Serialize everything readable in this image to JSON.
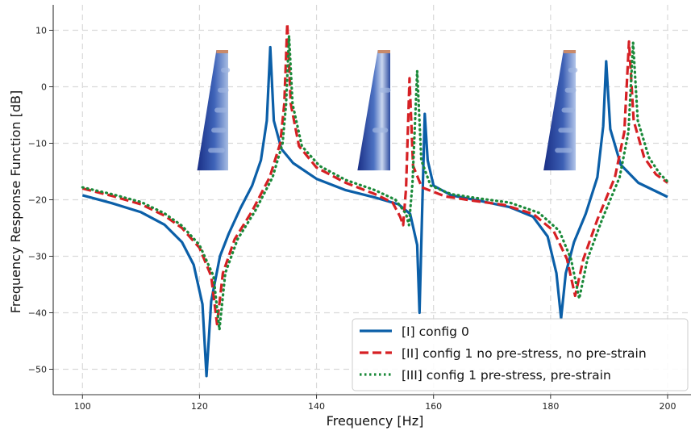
{
  "chart_data": {
    "type": "line",
    "title": "",
    "xlabel": "Frequency [Hz]",
    "ylabel": "Frequency Response Function [dB]",
    "xlim": [
      95,
      204
    ],
    "ylim": [
      -54.5,
      14.5
    ],
    "xticks": [
      100,
      120,
      140,
      160,
      180,
      200
    ],
    "yticks": [
      10,
      0,
      -10,
      -20,
      -30,
      -40,
      -50
    ],
    "grid": true,
    "legend_position": "bottom-right",
    "series": [
      {
        "name": "[I] config 0",
        "color": "#0b5fa8",
        "style": "solid",
        "antiresonances": [
          121.2,
          157.6,
          181.8
        ],
        "resonances": [
          132.1,
          158.5,
          189.5
        ],
        "points": [
          [
            100,
            -19.2
          ],
          [
            105,
            -20.6
          ],
          [
            110,
            -22.2
          ],
          [
            114,
            -24.4
          ],
          [
            117,
            -27.5
          ],
          [
            119,
            -31.5
          ],
          [
            120.5,
            -38.5
          ],
          [
            121.2,
            -51.2
          ],
          [
            122,
            -38.0
          ],
          [
            123.5,
            -30.0
          ],
          [
            125,
            -26.0
          ],
          [
            127,
            -21.5
          ],
          [
            129,
            -17.5
          ],
          [
            130.5,
            -13.0
          ],
          [
            131.5,
            -6.0
          ],
          [
            132.1,
            7.0
          ],
          [
            132.7,
            -6.0
          ],
          [
            134,
            -11.0
          ],
          [
            136,
            -13.5
          ],
          [
            140,
            -16.3
          ],
          [
            145,
            -18.3
          ],
          [
            150,
            -19.6
          ],
          [
            154,
            -20.8
          ],
          [
            156,
            -22.5
          ],
          [
            157.2,
            -28.0
          ],
          [
            157.6,
            -40.0
          ],
          [
            158.0,
            -24.0
          ],
          [
            158.5,
            -4.8
          ],
          [
            159.0,
            -13.0
          ],
          [
            160,
            -17.5
          ],
          [
            163,
            -19.2
          ],
          [
            168,
            -20.2
          ],
          [
            173,
            -21.3
          ],
          [
            177,
            -23.0
          ],
          [
            179.5,
            -26.5
          ],
          [
            181,
            -33.0
          ],
          [
            181.8,
            -41.0
          ],
          [
            182.6,
            -33.0
          ],
          [
            184,
            -27.5
          ],
          [
            186,
            -22.5
          ],
          [
            188,
            -16.0
          ],
          [
            189,
            -7.0
          ],
          [
            189.5,
            4.5
          ],
          [
            190.2,
            -7.5
          ],
          [
            192,
            -13.8
          ],
          [
            195,
            -17.0
          ],
          [
            200,
            -19.5
          ]
        ]
      },
      {
        "name": "[II] config 1 no pre-stress, no pre-strain",
        "color": "#d62024",
        "style": "dashed",
        "antiresonances": [
          123.0,
          154.8,
          184.2
        ],
        "resonances": [
          135.0,
          155.9,
          193.4
        ],
        "points": [
          [
            100,
            -18.0
          ],
          [
            105,
            -19.3
          ],
          [
            110,
            -20.8
          ],
          [
            114,
            -22.8
          ],
          [
            117,
            -25.0
          ],
          [
            120,
            -28.5
          ],
          [
            122,
            -33.5
          ],
          [
            123.0,
            -42.0
          ],
          [
            124,
            -33.0
          ],
          [
            126,
            -27.0
          ],
          [
            129,
            -22.0
          ],
          [
            132,
            -16.0
          ],
          [
            133.8,
            -10.0
          ],
          [
            134.5,
            -3.0
          ],
          [
            135.0,
            11.2
          ],
          [
            135.6,
            -3.0
          ],
          [
            137,
            -10.5
          ],
          [
            140,
            -14.3
          ],
          [
            145,
            -17.0
          ],
          [
            150,
            -19.0
          ],
          [
            153,
            -20.5
          ],
          [
            154.3,
            -23.0
          ],
          [
            154.8,
            -24.5
          ],
          [
            155.3,
            -18.0
          ],
          [
            155.9,
            1.5
          ],
          [
            156.5,
            -14.0
          ],
          [
            158,
            -17.8
          ],
          [
            162,
            -19.4
          ],
          [
            167,
            -20.2
          ],
          [
            172,
            -20.9
          ],
          [
            177,
            -22.5
          ],
          [
            180.5,
            -25.5
          ],
          [
            182.8,
            -30.5
          ],
          [
            184.2,
            -37.0
          ],
          [
            185.6,
            -30.5
          ],
          [
            188,
            -23.5
          ],
          [
            191,
            -16.0
          ],
          [
            192.6,
            -8.0
          ],
          [
            193.4,
            8.0
          ],
          [
            194.2,
            -6.0
          ],
          [
            196,
            -12.5
          ],
          [
            198,
            -15.5
          ],
          [
            200,
            -17.0
          ]
        ]
      },
      {
        "name": "[III] config 1 pre-stress, pre-strain",
        "color": "#1b8a3a",
        "style": "dotted",
        "antiresonances": [
          123.4,
          155.8,
          184.9
        ],
        "resonances": [
          135.3,
          157.2,
          194.1
        ],
        "points": [
          [
            100,
            -17.8
          ],
          [
            105,
            -19.0
          ],
          [
            110,
            -20.4
          ],
          [
            114,
            -22.4
          ],
          [
            117,
            -24.6
          ],
          [
            120,
            -28.0
          ],
          [
            122.4,
            -33.5
          ],
          [
            123.4,
            -43.0
          ],
          [
            124.4,
            -33.0
          ],
          [
            126.5,
            -27.0
          ],
          [
            129.5,
            -22.0
          ],
          [
            132.5,
            -16.0
          ],
          [
            134.2,
            -10.0
          ],
          [
            134.8,
            -3.0
          ],
          [
            135.3,
            9.0
          ],
          [
            135.9,
            -3.0
          ],
          [
            137.5,
            -10.5
          ],
          [
            140.5,
            -14.0
          ],
          [
            145,
            -16.5
          ],
          [
            150,
            -18.3
          ],
          [
            153.5,
            -20.0
          ],
          [
            155.3,
            -22.5
          ],
          [
            155.8,
            -24.5
          ],
          [
            156.4,
            -17.0
          ],
          [
            157.2,
            2.8
          ],
          [
            157.9,
            -13.0
          ],
          [
            159.5,
            -17.5
          ],
          [
            163,
            -19.0
          ],
          [
            168,
            -19.8
          ],
          [
            173,
            -20.5
          ],
          [
            178,
            -22.3
          ],
          [
            181.5,
            -25.5
          ],
          [
            183.5,
            -30.5
          ],
          [
            184.9,
            -37.5
          ],
          [
            186.3,
            -30.5
          ],
          [
            188.8,
            -23.5
          ],
          [
            191.8,
            -16.0
          ],
          [
            193.3,
            -8.0
          ],
          [
            194.1,
            7.8
          ],
          [
            194.9,
            -6.0
          ],
          [
            196.8,
            -12.5
          ],
          [
            198.6,
            -15.3
          ],
          [
            200,
            -16.8
          ]
        ]
      }
    ],
    "mode_shape_insets": [
      {
        "name": "mode-shape-1",
        "x_range": [
          119.6,
          124.9
        ],
        "y_range": [
          -14.8,
          6.5
        ],
        "base_color": "#1f3f95"
      },
      {
        "name": "mode-shape-2",
        "x_range": [
          147.0,
          152.6
        ],
        "y_range": [
          -14.8,
          6.5
        ],
        "base_color": "#1f3f95"
      },
      {
        "name": "mode-shape-3",
        "x_range": [
          178.8,
          184.3
        ],
        "y_range": [
          -14.8,
          6.5
        ],
        "base_color": "#1f3f95"
      }
    ]
  }
}
